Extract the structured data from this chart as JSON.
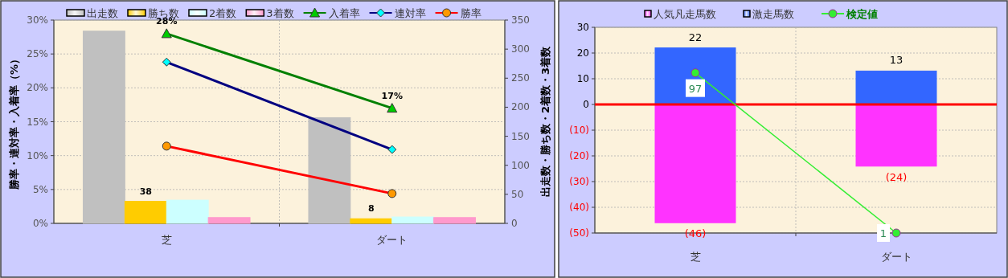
{
  "chart_data": [
    {
      "type": "bar",
      "categories": [
        "芝",
        "ダート"
      ],
      "ylabel": "勝率・連対率・入着率（%）",
      "y2label": "出走数・勝ち数・2着数・3着数",
      "ylim": [
        0,
        30
      ],
      "yticks": [
        {
          "value": 0,
          "label": "0%"
        },
        {
          "value": 5,
          "label": "5%"
        },
        {
          "value": 10,
          "label": "10%"
        },
        {
          "value": 15,
          "label": "15%"
        },
        {
          "value": 20,
          "label": "20%"
        },
        {
          "value": 25,
          "label": "25%"
        },
        {
          "value": 30,
          "label": "30%"
        }
      ],
      "y2lim": [
        0,
        350
      ],
      "y2ticks": [
        0,
        50,
        100,
        150,
        200,
        250,
        300,
        350
      ],
      "grid": true,
      "legend": "top",
      "series": [
        {
          "name": "出走数",
          "color": "#c0c0c0",
          "axis": "y2",
          "values": [
            331,
            182
          ]
        },
        {
          "name": "勝ち数",
          "color": "#ffcc00",
          "axis": "y2",
          "values": [
            38,
            8
          ],
          "value_labels": [
            "38",
            "8"
          ]
        },
        {
          "name": "2着数",
          "color": "#ccffff",
          "axis": "y2",
          "values": [
            40,
            11
          ]
        },
        {
          "name": "3着数",
          "color": "#ff99cc",
          "axis": "y2",
          "values": [
            10,
            10
          ]
        },
        {
          "name": "入着率",
          "type": "line",
          "color": "#008000",
          "marker": "triangle",
          "values": [
            28,
            17
          ],
          "value_labels": [
            "28%",
            "17%"
          ]
        },
        {
          "name": "連対率",
          "type": "line",
          "color": "#000080",
          "marker": "diamond",
          "values": [
            23.8,
            10.9
          ]
        },
        {
          "name": "勝率",
          "type": "line",
          "color": "#ff0000",
          "marker": "circle",
          "values": [
            11.4,
            4.4
          ]
        }
      ]
    },
    {
      "type": "bar",
      "stacked": true,
      "categories": [
        "芝",
        "ダート"
      ],
      "ylim": [
        -50,
        30
      ],
      "yticks": [
        {
          "value": -50,
          "label": "(50)"
        },
        {
          "value": -40,
          "label": "(40)"
        },
        {
          "value": -30,
          "label": "(30)"
        },
        {
          "value": -20,
          "label": "(20)"
        },
        {
          "value": -10,
          "label": "(10)"
        },
        0,
        10,
        20,
        30
      ],
      "grid": true,
      "legend": "top",
      "ref_lines": [
        {
          "axis": "y",
          "value": 0,
          "color": "#ff0000"
        }
      ],
      "series": [
        {
          "name": "人気凡走馬数",
          "color": "#ff33ff",
          "values": [
            -46,
            -24
          ],
          "value_labels": [
            "(46)",
            "(24)"
          ]
        },
        {
          "name": "激走馬数",
          "color": "#3366ff",
          "values": [
            22,
            13
          ],
          "value_labels": [
            "22",
            "13"
          ]
        },
        {
          "name": "検定値",
          "type": "line",
          "color": "#33ee33",
          "marker": "circle",
          "values": [
            12.3,
            -50
          ]
        }
      ],
      "annotations": [
        {
          "text": "97",
          "x": "芝",
          "y": 12.3
        },
        {
          "text": "1",
          "x": "ダート",
          "y": -50
        }
      ]
    }
  ]
}
